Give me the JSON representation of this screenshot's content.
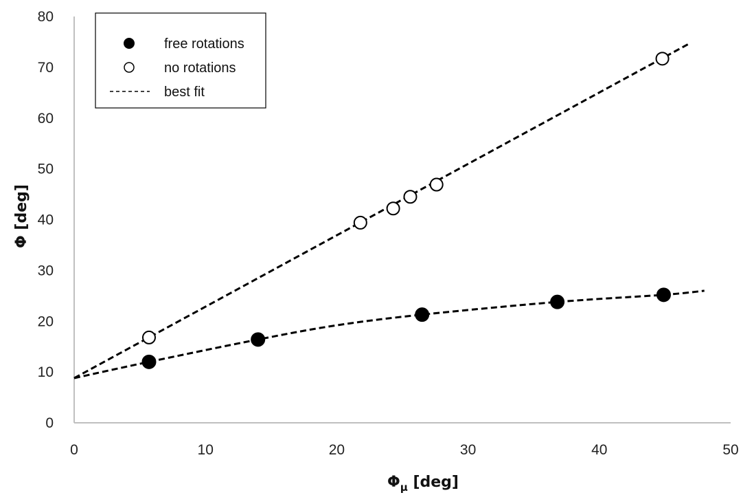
{
  "chart_data": {
    "type": "scatter",
    "x_axis": {
      "label_main": "Φ",
      "label_sub": "μ",
      "label_unit": " [deg]",
      "range": [
        0,
        50
      ],
      "ticks": [
        "0",
        "10",
        "20",
        "30",
        "40",
        "50"
      ]
    },
    "y_axis": {
      "label": "Φ [deg]",
      "range": [
        0,
        80
      ],
      "ticks": [
        "0",
        "10",
        "20",
        "30",
        "40",
        "50",
        "60",
        "70",
        "80"
      ]
    },
    "grid": false,
    "legend_position": "top-left",
    "legend": {
      "free": "free rotations",
      "no": "no rotations",
      "fit": "best fit"
    },
    "series": [
      {
        "name": "free rotations",
        "marker": "filled-circle",
        "color": "#000000",
        "x": [
          5.7,
          14.0,
          26.5,
          36.8,
          44.9
        ],
        "y": [
          12.0,
          16.4,
          21.3,
          23.8,
          25.2
        ]
      },
      {
        "name": "no rotations",
        "marker": "open-circle",
        "color": "#000000",
        "x": [
          5.7,
          21.8,
          24.3,
          25.6,
          27.6,
          44.8
        ],
        "y": [
          16.8,
          39.4,
          42.2,
          44.5,
          46.9,
          71.7
        ]
      }
    ],
    "fit_lines": [
      {
        "for": "free rotations",
        "style": "dashed",
        "x": [
          0,
          5.7,
          14.0,
          20.0,
          26.5,
          36.8,
          44.9,
          48.0
        ],
        "y": [
          8.8,
          12.0,
          16.4,
          19.2,
          21.3,
          23.8,
          25.2,
          26.0
        ]
      },
      {
        "for": "no rotations",
        "style": "dashed",
        "x": [
          0,
          46.8
        ],
        "y": [
          8.8,
          74.6
        ]
      }
    ]
  }
}
